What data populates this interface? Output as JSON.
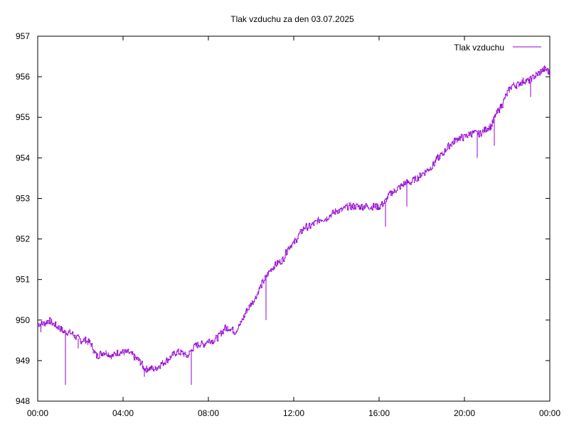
{
  "chart_data": {
    "type": "line",
    "title": "Tlak vzduchu za den 03.07.2025",
    "xlabel": "",
    "ylabel": "",
    "x_unit": "hours since 00:00 on 03.07.2025",
    "xlim": [
      0,
      24
    ],
    "ylim": [
      948,
      957
    ],
    "x_ticks": [
      {
        "value": 0,
        "label": "00:00"
      },
      {
        "value": 4,
        "label": "04:00"
      },
      {
        "value": 8,
        "label": "08:00"
      },
      {
        "value": 12,
        "label": "12:00"
      },
      {
        "value": 16,
        "label": "16:00"
      },
      {
        "value": 20,
        "label": "20:00"
      },
      {
        "value": 24,
        "label": "00:00"
      }
    ],
    "y_ticks": [
      {
        "value": 948,
        "label": "948"
      },
      {
        "value": 949,
        "label": "949"
      },
      {
        "value": 950,
        "label": "950"
      },
      {
        "value": 951,
        "label": "951"
      },
      {
        "value": 952,
        "label": "952"
      },
      {
        "value": 953,
        "label": "953"
      },
      {
        "value": 954,
        "label": "954"
      },
      {
        "value": 955,
        "label": "955"
      },
      {
        "value": 956,
        "label": "956"
      },
      {
        "value": 957,
        "label": "957"
      }
    ],
    "grid": false,
    "legend_position": "top-right",
    "series": [
      {
        "name": "Tlak vzduchu",
        "color": "#9400d3",
        "x": [
          0.0,
          0.25,
          0.5,
          0.75,
          1.0,
          1.25,
          1.5,
          1.75,
          2.0,
          2.25,
          2.5,
          2.75,
          3.0,
          3.25,
          3.5,
          3.75,
          4.0,
          4.25,
          4.5,
          4.75,
          5.0,
          5.25,
          5.5,
          5.75,
          6.0,
          6.25,
          6.5,
          6.75,
          7.0,
          7.25,
          7.5,
          7.75,
          8.0,
          8.25,
          8.5,
          8.75,
          9.0,
          9.25,
          9.5,
          9.75,
          10.0,
          10.25,
          10.5,
          10.75,
          11.0,
          11.25,
          11.5,
          11.75,
          12.0,
          12.25,
          12.5,
          12.75,
          13.0,
          13.25,
          13.5,
          13.75,
          14.0,
          14.25,
          14.5,
          14.75,
          15.0,
          15.25,
          15.5,
          15.75,
          16.0,
          16.25,
          16.5,
          16.75,
          17.0,
          17.25,
          17.5,
          17.75,
          18.0,
          18.25,
          18.5,
          18.75,
          19.0,
          19.25,
          19.5,
          19.75,
          20.0,
          20.25,
          20.5,
          20.75,
          21.0,
          21.25,
          21.5,
          21.75,
          22.0,
          22.25,
          22.5,
          22.75,
          23.0,
          23.25,
          23.5,
          23.75,
          24.0
        ],
        "y": [
          949.9,
          949.9,
          950.0,
          949.9,
          949.8,
          949.7,
          949.7,
          949.6,
          949.5,
          949.5,
          949.4,
          949.1,
          949.2,
          949.2,
          949.1,
          949.2,
          949.2,
          949.2,
          949.1,
          949.0,
          948.8,
          948.8,
          948.8,
          948.9,
          949.0,
          949.1,
          949.2,
          949.2,
          949.1,
          949.3,
          949.4,
          949.4,
          949.5,
          949.5,
          949.6,
          949.8,
          949.8,
          949.7,
          949.9,
          950.2,
          950.4,
          950.6,
          950.9,
          951.1,
          951.3,
          951.4,
          951.5,
          951.8,
          951.9,
          952.1,
          952.3,
          952.3,
          952.4,
          952.5,
          952.5,
          952.6,
          952.7,
          952.7,
          952.8,
          952.8,
          952.8,
          952.8,
          952.8,
          952.8,
          952.8,
          952.9,
          953.1,
          953.2,
          953.3,
          953.4,
          953.4,
          953.5,
          953.6,
          953.7,
          953.8,
          954.0,
          954.1,
          954.3,
          954.4,
          954.5,
          954.5,
          954.6,
          954.6,
          954.6,
          954.7,
          954.8,
          955.1,
          955.3,
          955.6,
          955.8,
          955.8,
          955.9,
          955.9,
          956.0,
          956.1,
          956.2,
          956.1
        ]
      }
    ],
    "spikes": [
      {
        "x": 0.15,
        "y": 949.7
      },
      {
        "x": 1.3,
        "y": 948.4
      },
      {
        "x": 1.9,
        "y": 949.3
      },
      {
        "x": 5.0,
        "y": 948.6
      },
      {
        "x": 7.2,
        "y": 948.4
      },
      {
        "x": 10.7,
        "y": 950.0
      },
      {
        "x": 16.3,
        "y": 952.3
      },
      {
        "x": 17.3,
        "y": 952.8
      },
      {
        "x": 20.6,
        "y": 954.0
      },
      {
        "x": 21.4,
        "y": 954.3
      },
      {
        "x": 23.1,
        "y": 955.5
      }
    ]
  }
}
